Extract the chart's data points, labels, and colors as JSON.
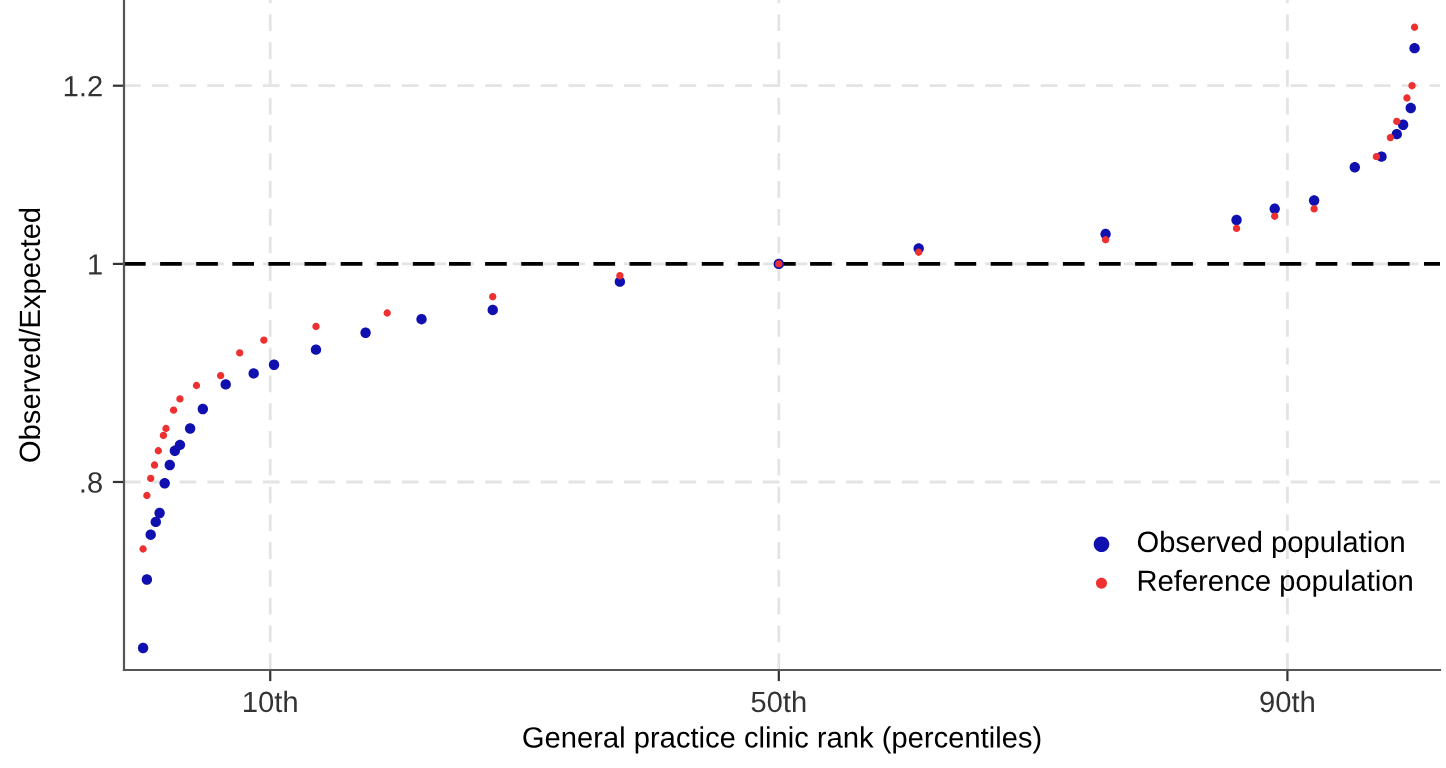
{
  "chart_data": {
    "type": "scatter",
    "xlabel": "General practice clinic rank (percentiles)",
    "ylabel": "Observed/Expected",
    "xlim": [
      -1.5,
      102
    ],
    "xticks": [
      {
        "value": 10,
        "label": "10th"
      },
      {
        "value": 50,
        "label": "50th"
      },
      {
        "value": 90,
        "label": "90th"
      }
    ],
    "ylim": [
      0.66,
      1.31
    ],
    "yticks": [
      {
        "value": 0.8,
        "label": ".8"
      },
      1,
      1.2
    ],
    "log": "y",
    "grid": true,
    "marker": "circle",
    "legend": "bottom right",
    "ref_lines": [
      {
        "axis": "y",
        "value": 1,
        "color": "#000000",
        "line_style": "dashed"
      }
    ],
    "series": [
      {
        "name": "Observed population",
        "color": "#1010b0",
        "x": [
          0,
          0.3,
          0.6,
          1.0,
          1.3,
          1.7,
          2.1,
          2.5,
          2.9,
          3.7,
          4.7,
          6.5,
          8.7,
          10.3,
          13.6,
          17.5,
          21.9,
          27.5,
          37.5,
          50,
          61.0,
          75.7,
          86.0,
          89.0,
          92.1,
          95.3,
          97.4,
          98.6,
          99.1,
          99.7,
          100
        ],
        "values": [
          0.675,
          0.724,
          0.758,
          0.768,
          0.775,
          0.799,
          0.814,
          0.826,
          0.831,
          0.845,
          0.862,
          0.884,
          0.894,
          0.902,
          0.916,
          0.932,
          0.945,
          0.954,
          0.982,
          1.0,
          1.016,
          1.031,
          1.046,
          1.058,
          1.067,
          1.104,
          1.116,
          1.142,
          1.153,
          1.173,
          1.247
        ]
      },
      {
        "name": "Reference population",
        "color": "#ee3030",
        "x": [
          0,
          0.3,
          0.6,
          0.9,
          1.2,
          1.6,
          1.8,
          2.4,
          2.9,
          4.2,
          6.1,
          7.6,
          9.5,
          13.6,
          19.2,
          27.5,
          37.5,
          50,
          61.0,
          75.7,
          86.0,
          89.0,
          92.1,
          97.0,
          98.1,
          98.6,
          99.4,
          99.8,
          100
        ],
        "values": [
          0.747,
          0.789,
          0.803,
          0.814,
          0.826,
          0.839,
          0.845,
          0.861,
          0.871,
          0.883,
          0.892,
          0.913,
          0.925,
          0.938,
          0.951,
          0.967,
          0.988,
          1.0,
          1.012,
          1.025,
          1.037,
          1.05,
          1.058,
          1.116,
          1.138,
          1.157,
          1.185,
          1.2,
          1.274
        ]
      }
    ]
  }
}
